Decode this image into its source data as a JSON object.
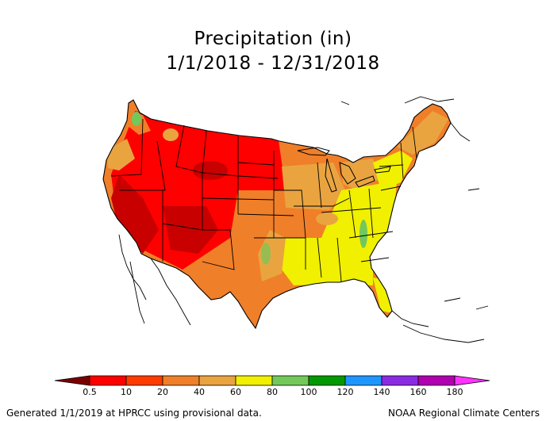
{
  "title": {
    "line1": "Precipitation (in)",
    "line2": "1/1/2018 - 12/31/2018"
  },
  "legend": {
    "ticks": [
      "0.5",
      "10",
      "20",
      "40",
      "60",
      "80",
      "100",
      "120",
      "140",
      "160",
      "180"
    ],
    "colors": [
      "#c80000",
      "#ff0000",
      "#ff3c00",
      "#f07f29",
      "#e9a440",
      "#f0f000",
      "#73c85a",
      "#009900",
      "#1e96ff",
      "#8a2be2",
      "#b000b0",
      "#ff33ff"
    ],
    "low_arrow_color": "#7a0000",
    "high_arrow_color": "#ff33ff"
  },
  "footer": {
    "left": "Generated 1/1/2019 at HPRCC using provisional data.",
    "right": "NOAA Regional Climate Centers"
  }
}
